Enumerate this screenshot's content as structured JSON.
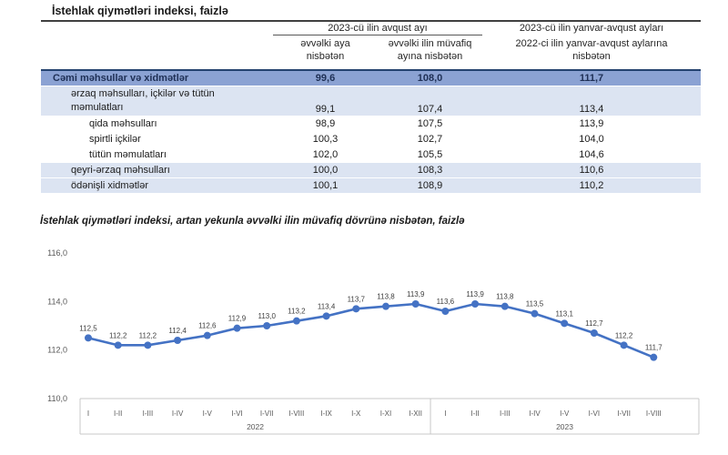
{
  "page": {
    "title": "İstehlak qiymətləri indeksi, faizlə"
  },
  "table": {
    "group1_header": "2023-cü ilin avqust ayı",
    "group2_header_line1": "2023-cü ilin yanvar-avqust ayları",
    "group2_header_line2": "2022-ci ilin yanvar-avqust aylarına nisbətən",
    "subheader_col1": "əvvəlki aya nisbətən",
    "subheader_col2": "əvvəlki ilin müvafiq ayına nisbətən",
    "rows": [
      {
        "label": "Cəmi məhsullar və xidmətlər",
        "values": [
          "99,6",
          "108,0",
          "111,7"
        ],
        "level": 0,
        "bg": "blue",
        "emphasis": true,
        "twoline": false
      },
      {
        "label": "ərzaq məhsulları, içkilər və tütün məmulatları",
        "values": [
          "99,1",
          "107,4",
          "113,4"
        ],
        "level": 1,
        "bg": "light",
        "emphasis": false,
        "twoline": true
      },
      {
        "label": "qida məhsulları",
        "values": [
          "98,9",
          "107,5",
          "113,9"
        ],
        "level": 2,
        "bg": "white",
        "emphasis": false,
        "twoline": false
      },
      {
        "label": "spirtli içkilər",
        "values": [
          "100,3",
          "102,7",
          "104,0"
        ],
        "level": 2,
        "bg": "white",
        "emphasis": false,
        "twoline": false
      },
      {
        "label": "tütün məmulatları",
        "values": [
          "102,0",
          "105,5",
          "104,6"
        ],
        "level": 2,
        "bg": "white",
        "emphasis": false,
        "twoline": false
      },
      {
        "label": "qeyri-ərzaq məhsulları",
        "values": [
          "100,0",
          "108,3",
          "110,6"
        ],
        "level": 1,
        "bg": "light",
        "emphasis": false,
        "twoline": false
      },
      {
        "label": "ödənişli xidmətlər",
        "values": [
          "100,1",
          "108,9",
          "110,2"
        ],
        "level": 1,
        "bg": "light",
        "emphasis": false,
        "twoline": false
      }
    ]
  },
  "chart": {
    "title": "İstehlak qiymətləri indeksi, artan yekunla əvvəlki ilin müvafiq dövrünə nisbətən, faizlə"
  },
  "chart_data": {
    "type": "line",
    "x": [
      "I",
      "I-II",
      "I-III",
      "I-IV",
      "I-V",
      "I-VI",
      "I-VII",
      "I-VIII",
      "I-IX",
      "I-X",
      "I-XI",
      "I-XII",
      "I",
      "I-II",
      "I-III",
      "I-IV",
      "I-V",
      "I-VI",
      "I-VII",
      "I-VIII"
    ],
    "x_groups": [
      {
        "label": "2022",
        "count": 12
      },
      {
        "label": "2023",
        "count": 8
      }
    ],
    "values": [
      112.5,
      112.2,
      112.2,
      112.4,
      112.6,
      112.9,
      113.0,
      113.2,
      113.4,
      113.7,
      113.8,
      113.9,
      113.6,
      113.9,
      113.8,
      113.5,
      113.1,
      112.7,
      112.2,
      111.7
    ],
    "ylim": [
      110.0,
      116.0
    ],
    "ytick_step": 2.0,
    "grid": false,
    "legend": "none",
    "line_color": "#4472C4",
    "label_format": "comma-decimal-1"
  },
  "colors": {
    "accent_line": "#4472C4",
    "total_row_bg": "#8BA2D3",
    "shaded_row_bg": "#DCE4F2",
    "table_top_border": "#24426F"
  }
}
